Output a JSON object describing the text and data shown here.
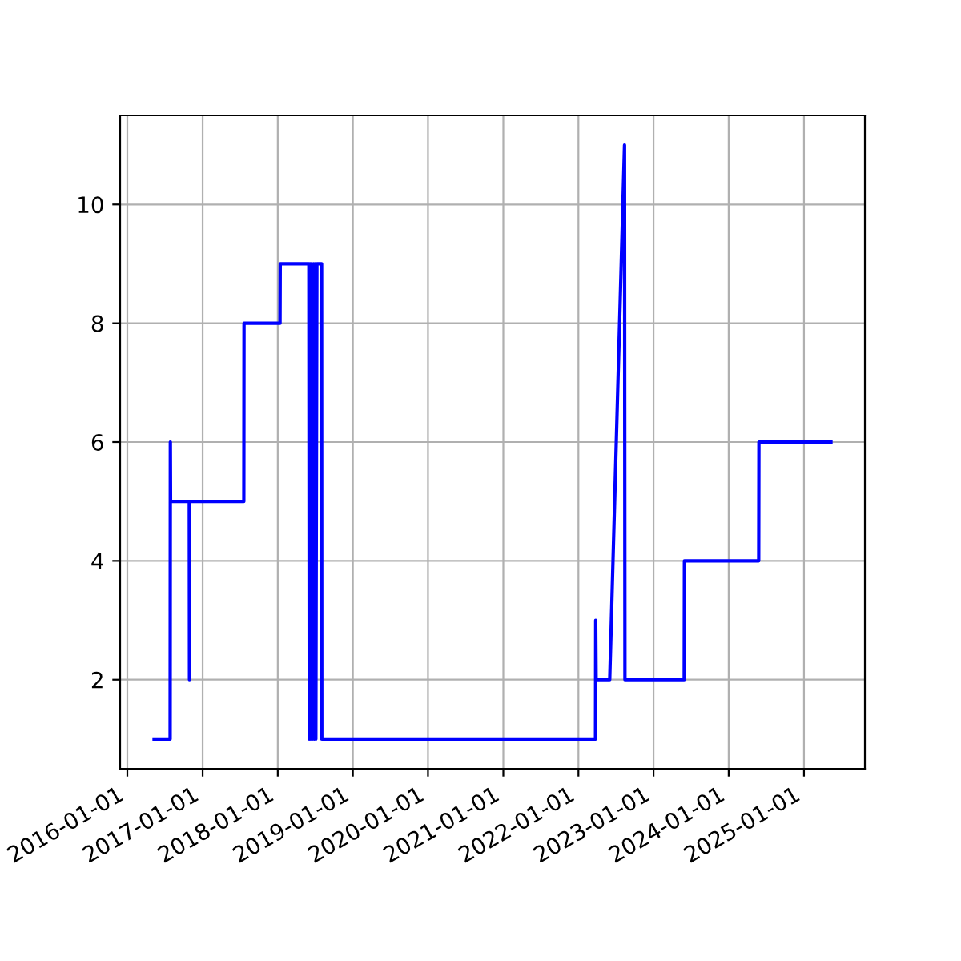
{
  "chart_data": {
    "type": "line",
    "x": [
      "2016-05-10",
      "2016-07-27",
      "2016-07-28",
      "2016-07-29",
      "2016-10-28",
      "2016-10-29",
      "2016-10-30",
      "2017-07-20",
      "2017-07-21",
      "2018-01-12",
      "2018-01-13",
      "2018-06-01",
      "2018-06-03",
      "2018-06-08",
      "2018-06-10",
      "2018-06-15",
      "2018-06-18",
      "2018-06-24",
      "2018-06-27",
      "2018-07-02",
      "2018-07-05",
      "2018-07-10",
      "2018-08-02",
      "2018-08-03",
      "2022-03-25",
      "2022-03-26",
      "2022-03-28",
      "2022-06-02",
      "2022-08-13",
      "2022-08-15",
      "2023-05-30",
      "2023-05-31",
      "2024-05-26",
      "2024-05-27",
      "2025-05-12"
    ],
    "series": [
      {
        "color": "#0000ff",
        "values": [
          1,
          1,
          6,
          5,
          5,
          2,
          5,
          5,
          8,
          8,
          9,
          9,
          1,
          9,
          1,
          9,
          1,
          9,
          1,
          9,
          1,
          9,
          9,
          1,
          1,
          3,
          2,
          2,
          11,
          2,
          2,
          4,
          4,
          6,
          6
        ]
      }
    ],
    "xlim": [
      "2015-11-27",
      "2025-10-24"
    ],
    "xticks": [
      "2016-01-01",
      "2017-01-01",
      "2018-01-01",
      "2019-01-01",
      "2020-01-01",
      "2021-01-01",
      "2022-01-01",
      "2023-01-01",
      "2024-01-01",
      "2025-01-01"
    ],
    "ylim": [
      0.5,
      11.5
    ],
    "yticks": [
      2,
      4,
      6,
      8,
      10
    ],
    "grid": true,
    "marker": "none",
    "line_style": "solid"
  }
}
